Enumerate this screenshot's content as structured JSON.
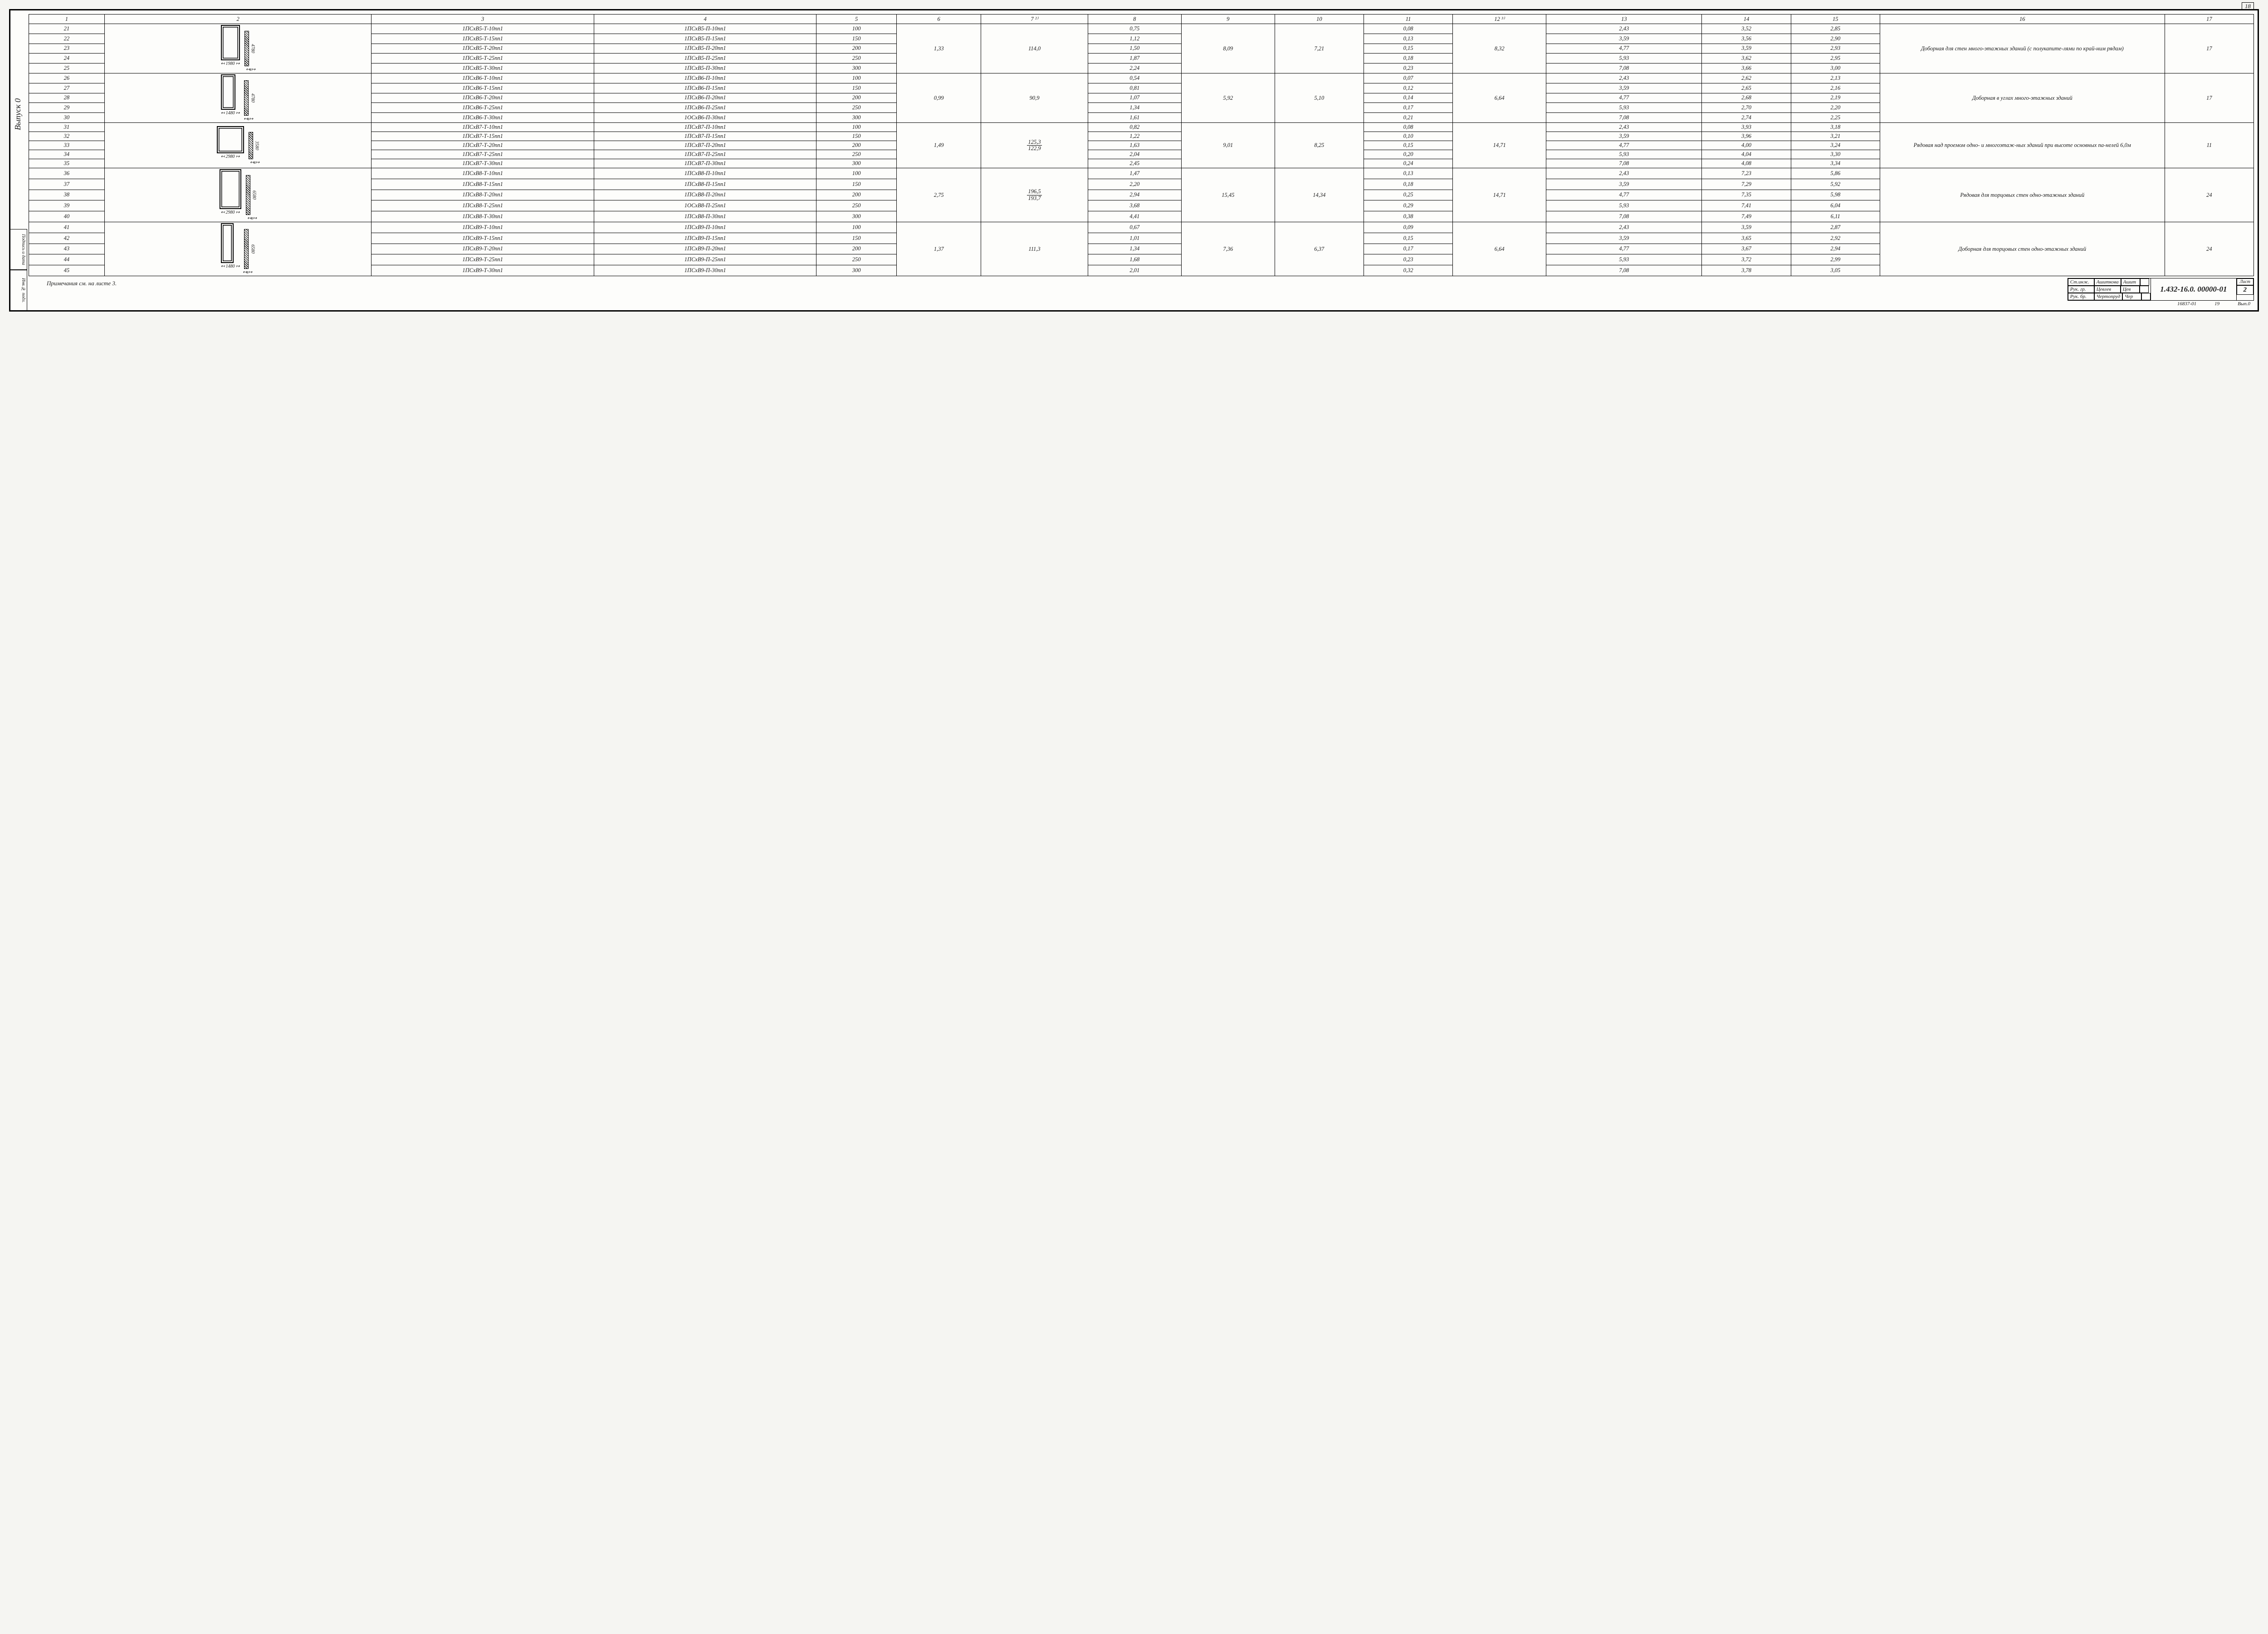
{
  "page_number_top": "18",
  "side_rotated_label": "Выпуск 0",
  "side_boxes": [
    "Подпись и дата",
    "Инв.№ подл."
  ],
  "note": "Примечания см. на листе 3.",
  "footer": {
    "code": "16837-01",
    "num": "19",
    "issue": "Вып.0"
  },
  "title_block": {
    "rows": [
      {
        "role": "Ст.инж.",
        "name": "Ашиткова",
        "sig": "Ашит"
      },
      {
        "role": "Рук. гр.",
        "name": "Цевлев",
        "sig": "Цев"
      },
      {
        "role": "Рук. бр.",
        "name": "Чертопруд",
        "sig": "Чер"
      }
    ],
    "doc_number": "1.432-16.0. 00000-01",
    "sheet_label": "Лист",
    "sheet_value": "2"
  },
  "columns": {
    "widths_pct": [
      3.4,
      12.0,
      10.0,
      10.0,
      3.6,
      3.8,
      4.8,
      4.2,
      4.2,
      4.0,
      4.0,
      4.2,
      7.0,
      4.0,
      4.0,
      12.8,
      4.0
    ],
    "headers": [
      "1",
      "2",
      "3",
      "4",
      "5",
      "6",
      "7 ²⁾",
      "8",
      "9",
      "10",
      "11",
      "12 ³⁾",
      "13",
      "14",
      "15",
      "16",
      "17"
    ]
  },
  "groups": [
    {
      "sketch": {
        "w": "1980",
        "h": "4780",
        "rect_w": 42,
        "rect_h": 78
      },
      "c6": "1,33",
      "c7": "114,0",
      "c9": "8,09",
      "c10": "7,21",
      "c12": "8,32",
      "c16": "Доборная для стен много-этажных зданий (с полукапите-лями по край-ним рядам)",
      "c17": "17",
      "rows": [
        {
          "n": "21",
          "c3": "1ПСхВ5-Т-10пп1",
          "c4": "1ПСхВ5-П-10пп1",
          "c5": "100",
          "c8": "0,75",
          "c11": "0,08",
          "c13": "2,43",
          "c14": "3,52",
          "c15": "2,85"
        },
        {
          "n": "22",
          "c3": "1ПСхВ5-Т-15пп1",
          "c4": "1ПСхВ5-П-15пп1",
          "c5": "150",
          "c8": "1,12",
          "c11": "0,13",
          "c13": "3,59",
          "c14": "3,56",
          "c15": "2,90"
        },
        {
          "n": "23",
          "c3": "1ПСхВ5-Т-20пп1",
          "c4": "1ПСхВ5-П-20пп1",
          "c5": "200",
          "c8": "1,50",
          "c11": "0,15",
          "c13": "4,77",
          "c14": "3,59",
          "c15": "2,93"
        },
        {
          "n": "24",
          "c3": "1ПСхВ5-Т-25пп1",
          "c4": "1ПСхВ5-П-25пп1",
          "c5": "250",
          "c8": "1,87",
          "c11": "0,18",
          "c13": "5,93",
          "c14": "3,62",
          "c15": "2,95"
        },
        {
          "n": "25",
          "c3": "1ПСхВ5-Т-30пп1",
          "c4": "1ПСхВ5-П-30пп1",
          "c5": "300",
          "c8": "2,24",
          "c11": "0,23",
          "c13": "7,08",
          "c14": "3,66",
          "c15": "3,00"
        }
      ]
    },
    {
      "sketch": {
        "w": "1480",
        "h": "4780",
        "rect_w": 32,
        "rect_h": 78
      },
      "c6": "0,99",
      "c7": "90,9",
      "c9": "5,92",
      "c10": "5,10",
      "c12": "6,64",
      "c16": "Доборная в углах много-этажных зданий",
      "c17": "17",
      "rows": [
        {
          "n": "26",
          "c3": "1ПСхВ6-Т-10пп1",
          "c4": "1ПСхВ6-П-10пп1",
          "c5": "100",
          "c8": "0,54",
          "c11": "0,07",
          "c13": "2,43",
          "c14": "2,62",
          "c15": "2,13"
        },
        {
          "n": "27",
          "c3": "1ПСхВ6-Т-15пп1",
          "c4": "1ПСхВ6-П-15пп1",
          "c5": "150",
          "c8": "0,81",
          "c11": "0,12",
          "c13": "3,59",
          "c14": "2,65",
          "c15": "2,16"
        },
        {
          "n": "28",
          "c3": "1ПСхВ6-Т-20пп1",
          "c4": "1ПСхВ6-П-20пп1",
          "c5": "200",
          "c8": "1,07",
          "c11": "0,14",
          "c13": "4,77",
          "c14": "2,68",
          "c15": "2,19"
        },
        {
          "n": "29",
          "c3": "1ПСхВ6-Т-25пп1",
          "c4": "1ПСхВ6-П-25пп1",
          "c5": "250",
          "c8": "1,34",
          "c11": "0,17",
          "c13": "5,93",
          "c14": "2,70",
          "c15": "2,20"
        },
        {
          "n": "30",
          "c3": "1ПСхВ6-Т-30пп1",
          "c4": "1ОСхВ6-П-30пп1",
          "c5": "300",
          "c8": "1,61",
          "c11": "0,21",
          "c13": "7,08",
          "c14": "2,74",
          "c15": "2,25"
        }
      ]
    },
    {
      "sketch": {
        "w": "2980",
        "h": "3580",
        "rect_w": 60,
        "rect_h": 60
      },
      "c6": "1,49",
      "c7_top": "125,3",
      "c7_bot": "122,9",
      "c9": "9,01",
      "c10": "8,25",
      "c12": "14,71",
      "c16": "Рядовая над проемом одно- и многоэтаж-ных зданий при высоте основных па-нелей 6,0м",
      "c17": "11",
      "rows": [
        {
          "n": "31",
          "c3": "1ПСхВ7-Т-10пп1",
          "c4": "1ПСхВ7-П-10пп1",
          "c5": "100",
          "c8": "0,82",
          "c11": "0,08",
          "c13": "2,43",
          "c14": "3,93",
          "c15": "3,18"
        },
        {
          "n": "32",
          "c3": "1ПСхВ7-Т-15пп1",
          "c4": "1ПСхВ7-П-15пп1",
          "c5": "150",
          "c8": "1,22",
          "c11": "0,10",
          "c13": "3,59",
          "c14": "3,96",
          "c15": "3,21"
        },
        {
          "n": "33",
          "c3": "1ПСхВ7-Т-20пп1",
          "c4": "1ПСхВ7-П-20пп1",
          "c5": "200",
          "c8": "1,63",
          "c11": "0,15",
          "c13": "4,77",
          "c14": "4,00",
          "c15": "3,24"
        },
        {
          "n": "34",
          "c3": "1ПСхВ7-Т-25пп1",
          "c4": "1ПСхВ7-П-25пп1",
          "c5": "250",
          "c8": "2,04",
          "c11": "0,20",
          "c13": "5,93",
          "c14": "4,04",
          "c15": "3,30"
        },
        {
          "n": "35",
          "c3": "1ПСхВ7-Т-30пп1",
          "c4": "1ПСхВ7-П-30пп1",
          "c5": "300",
          "c8": "2,45",
          "c11": "0,24",
          "c13": "7,08",
          "c14": "4,08",
          "c15": "3,34"
        }
      ]
    },
    {
      "sketch": {
        "w": "2980",
        "h": "6580",
        "rect_w": 48,
        "rect_h": 88
      },
      "c6": "2,75",
      "c7_top": "196,5",
      "c7_bot": "193,7",
      "c9": "15,45",
      "c10": "14,34",
      "c12": "14,71",
      "c16": "Рядовая для торцовых стен одно-этажных зданий",
      "c17": "24",
      "rows": [
        {
          "n": "36",
          "c3": "1ПСхВ8-Т-10пп1",
          "c4": "1ПСхВ8-П-10пп1",
          "c5": "100",
          "c8": "1,47",
          "c11": "0,13",
          "c13": "2,43",
          "c14": "7,23",
          "c15": "5,86"
        },
        {
          "n": "37",
          "c3": "1ПСхВ8-Т-15пп1",
          "c4": "1ПСхВ8-П-15пп1",
          "c5": "150",
          "c8": "2,20",
          "c11": "0,18",
          "c13": "3,59",
          "c14": "7,29",
          "c15": "5,92"
        },
        {
          "n": "38",
          "c3": "1ПСхВ8-Т-20пп1",
          "c4": "1ПСхВ8-П-20пп1",
          "c5": "200",
          "c8": "2,94",
          "c11": "0,25",
          "c13": "4,77",
          "c14": "7,35",
          "c15": "5,98"
        },
        {
          "n": "39",
          "c3": "1ПСхВ8-Т-25пп1",
          "c4": "1ОСхВ8-П-25пп1",
          "c5": "250",
          "c8": "3,68",
          "c11": "0,29",
          "c13": "5,93",
          "c14": "7,41",
          "c15": "6,04"
        },
        {
          "n": "40",
          "c3": "1ПСхВ8-Т-30пп1",
          "c4": "1ПСхВ8-П-30пп1",
          "c5": "300",
          "c8": "4,41",
          "c11": "0,38",
          "c13": "7,08",
          "c14": "7,49",
          "c15": "6,11"
        }
      ]
    },
    {
      "sketch": {
        "w": "1480",
        "h": "6580",
        "rect_w": 28,
        "rect_h": 88
      },
      "c6": "1,37",
      "c7": "111,3",
      "c9": "7,36",
      "c10": "6,37",
      "c12": "6,64",
      "c16": "Доборная для торцовых стен одно-этажных зданий",
      "c17": "24",
      "rows": [
        {
          "n": "41",
          "c3": "1ПСхВ9-Т-10пп1",
          "c4": "1ПСхВ9-П-10пп1",
          "c5": "100",
          "c8": "0,67",
          "c11": "0,09",
          "c13": "2,43",
          "c14": "3,59",
          "c15": "2,87"
        },
        {
          "n": "42",
          "c3": "1ПСхВ9-Т-15пп1",
          "c4": "1ПСхВ9-П-15пп1",
          "c5": "150",
          "c8": "1,01",
          "c11": "0,15",
          "c13": "3,59",
          "c14": "3,65",
          "c15": "2,92"
        },
        {
          "n": "43",
          "c3": "1ПСхВ9-Т-20пп1",
          "c4": "1ПСхВ9-П-20пп1",
          "c5": "200",
          "c8": "1,34",
          "c11": "0,17",
          "c13": "4,77",
          "c14": "3,67",
          "c15": "2,94"
        },
        {
          "n": "44",
          "c3": "1ПСхВ9-Т-25пп1",
          "c4": "1ПСхВ9-П-25пп1",
          "c5": "250",
          "c8": "1,68",
          "c11": "0,23",
          "c13": "5,93",
          "c14": "3,72",
          "c15": "2,99"
        },
        {
          "n": "45",
          "c3": "1ПСхВ9-Т-30пп1",
          "c4": "1ПСхВ9-П-30пп1",
          "c5": "300",
          "c8": "2,01",
          "c11": "0,32",
          "c13": "7,08",
          "c14": "3,78",
          "c15": "3,05"
        }
      ]
    }
  ]
}
